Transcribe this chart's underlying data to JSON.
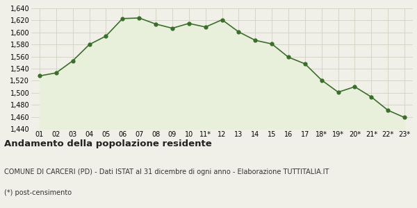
{
  "x_labels": [
    "01",
    "02",
    "03",
    "04",
    "05",
    "06",
    "07",
    "08",
    "09",
    "10",
    "11*",
    "12",
    "13",
    "14",
    "15",
    "16",
    "17",
    "18*",
    "19*",
    "20*",
    "21*",
    "22*",
    "23*"
  ],
  "values": [
    1528,
    1533,
    1553,
    1580,
    1594,
    1623,
    1624,
    1614,
    1607,
    1615,
    1609,
    1621,
    1601,
    1587,
    1581,
    1559,
    1548,
    1521,
    1501,
    1510,
    1493,
    1471,
    1459
  ],
  "ylim": [
    1440,
    1640
  ],
  "yticks": [
    1440,
    1460,
    1480,
    1500,
    1520,
    1540,
    1560,
    1580,
    1600,
    1620,
    1640
  ],
  "line_color": "#3a6e2a",
  "fill_color": "#e8efdb",
  "marker_color": "#3a6e2a",
  "bg_color": "#f0f0e8",
  "grid_color": "#ccccbb",
  "title": "Andamento della popolazione residente",
  "subtitle": "COMUNE DI CARCERI (PD) - Dati ISTAT al 31 dicembre di ogni anno - Elaborazione TUTTITALIA.IT",
  "footnote": "(*) post-censimento",
  "title_fontsize": 9.5,
  "subtitle_fontsize": 7.0,
  "footnote_fontsize": 7.0,
  "tick_fontsize": 7.0
}
